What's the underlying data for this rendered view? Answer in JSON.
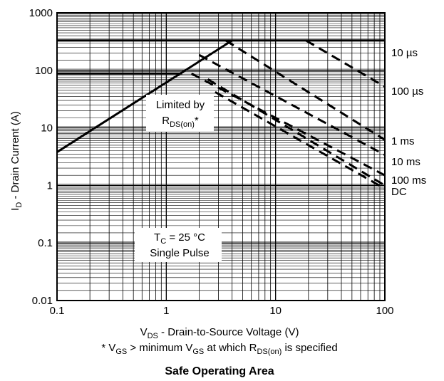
{
  "chart_data": {
    "type": "line",
    "title": "Safe Operating Area",
    "xlabel": {
      "main": "V",
      "sub": "DS",
      "rest": " - Drain-to-Source Voltage (V)"
    },
    "ylabel": {
      "main": "I",
      "sub": "D",
      "rest": " - Drain Current (A)"
    },
    "footnote": {
      "p1": "* V",
      "s1": "GS",
      "p2": " > minimum V",
      "s2": "GS",
      "p3": " at which R",
      "s3": "DS(on)",
      "p4": " is specified"
    },
    "x_scale": "log",
    "y_scale": "log",
    "xlim": [
      0.1,
      100
    ],
    "ylim": [
      0.01,
      1000
    ],
    "grid": true,
    "x_ticks": [
      "0.1",
      "1",
      "10",
      "100"
    ],
    "y_ticks": [
      "0.01",
      "0.1",
      "1",
      "10",
      "100",
      "1000"
    ],
    "x_tick_values": [
      0.1,
      1,
      10,
      100
    ],
    "y_tick_values": [
      0.01,
      0.1,
      1,
      10,
      100,
      1000
    ],
    "limits": {
      "package_current_limit": {
        "x": [
          0.1,
          100
        ],
        "y": [
          330,
          330
        ]
      },
      "secondary_current_level": {
        "x": [
          0.1,
          1.4
        ],
        "y": [
          88,
          88
        ]
      },
      "rds_on_limit": {
        "x": [
          0.1,
          4.0
        ],
        "y": [
          3.8,
          330
        ]
      }
    },
    "series": [
      {
        "name": "10 µs",
        "x": [
          19,
          100
        ],
        "y": [
          330,
          52
        ]
      },
      {
        "name": "100 µs",
        "x": [
          3.5,
          100
        ],
        "y": [
          330,
          6.2
        ]
      },
      {
        "name": "1 ms",
        "x": [
          2.0,
          100
        ],
        "y": [
          185,
          3.4
        ]
      },
      {
        "name": "10 ms",
        "x": [
          1.7,
          100
        ],
        "y": [
          88,
          1.5
        ]
      },
      {
        "name": "100 ms",
        "x": [
          2.4,
          100
        ],
        "y": [
          70,
          1.0
        ]
      },
      {
        "name": "DC",
        "x": [
          2.8,
          100
        ],
        "y": [
          42,
          0.88
        ]
      }
    ],
    "annotations": {
      "limited_by": {
        "line1": "Limited by",
        "main": "R",
        "sub": "DS(on)",
        "rest": "*"
      },
      "conditions": {
        "main": "T",
        "sub": "C",
        "rest": " = 25 °C",
        "line2": "Single Pulse"
      }
    }
  }
}
